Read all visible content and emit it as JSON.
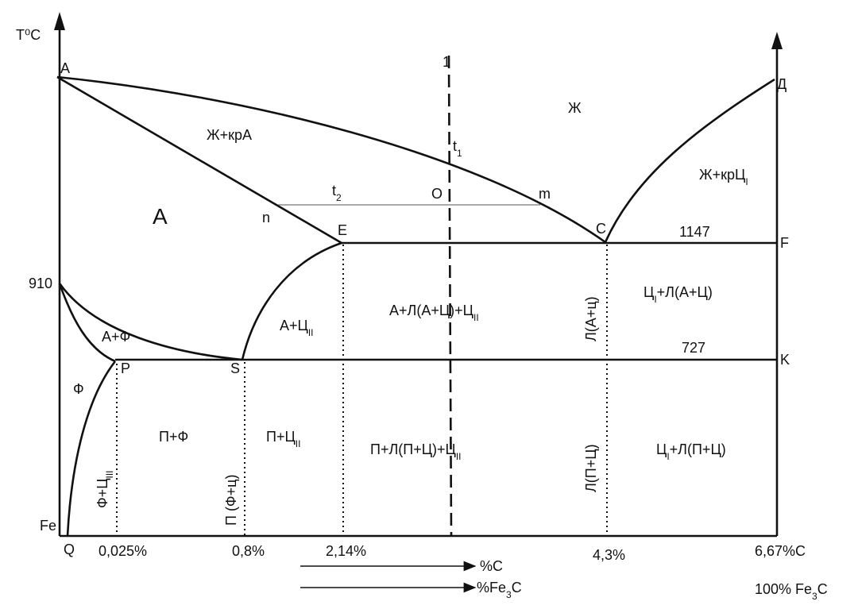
{
  "axis": {
    "temperature": "T⁰C",
    "t910": "910",
    "t1147": "1147",
    "t727": "727"
  },
  "points": {
    "A": "A",
    "D": "Д",
    "C": "C",
    "E": "E",
    "F": "F",
    "K": "K",
    "P": "P",
    "S": "S",
    "Q": "Q",
    "Fe": "Fe",
    "n": "n",
    "m": "m",
    "O": "O",
    "line1": "1",
    "t1": [
      {
        "text": "t"
      },
      {
        "sub": "1"
      }
    ],
    "t2": [
      {
        "text": "t"
      },
      {
        "sub": "2"
      }
    ]
  },
  "regions": {
    "liquid": "Ж",
    "liquid_austenite": "Ж+крА",
    "liquid_cementite": [
      {
        "text": "Ж+крЦ"
      },
      {
        "sub": "I"
      }
    ],
    "austenite": "A",
    "austenite_ferrite": "А+Ф",
    "ferrite": "Ф",
    "austenite_cem2": [
      {
        "text": "А+Ц"
      },
      {
        "sub": "II"
      }
    ],
    "aust_ledeburite": [
      {
        "text": "А+Л(А+Ц)+Ц"
      },
      {
        "sub": "II"
      }
    ],
    "ledeburite_hi": "Л(А+ц)",
    "cem1_ledeburite_hi": [
      {
        "text": "Ц"
      },
      {
        "sub": "I"
      },
      {
        "text": "+Л(А+Ц)"
      }
    ],
    "ferrite_cem3": [
      {
        "text": "Ф+Ц"
      },
      {
        "sub": "III"
      }
    ],
    "pearlite_ferrite": "П+Ф",
    "pearlite": "П  (Ф+ц)",
    "pearlite_cem2": [
      {
        "text": "П+Ц"
      },
      {
        "sub": "II"
      }
    ],
    "pearlite_ledeburite": [
      {
        "text": "П+Л(П+Ц)+Ц"
      },
      {
        "sub": "II"
      }
    ],
    "ledeburite_lo": "Л(П+Ц)",
    "cem1_ledeburite_lo": [
      {
        "text": "Ц"
      },
      {
        "sub": "I"
      },
      {
        "text": "+Л(П+Ц)"
      }
    ]
  },
  "compositions": {
    "c0025": "0,025%",
    "c08": "0,8%",
    "c214": "2,14%",
    "c43": "4,3%",
    "c667": "6,67%C",
    "pct_c": "%C",
    "pct_fe3c": [
      {
        "text": "%Fe"
      },
      {
        "sub": "3"
      },
      {
        "text": "C"
      }
    ],
    "full_fe3c": [
      {
        "text": "100% Fe"
      },
      {
        "sub": "3"
      },
      {
        "text": "C"
      }
    ]
  }
}
